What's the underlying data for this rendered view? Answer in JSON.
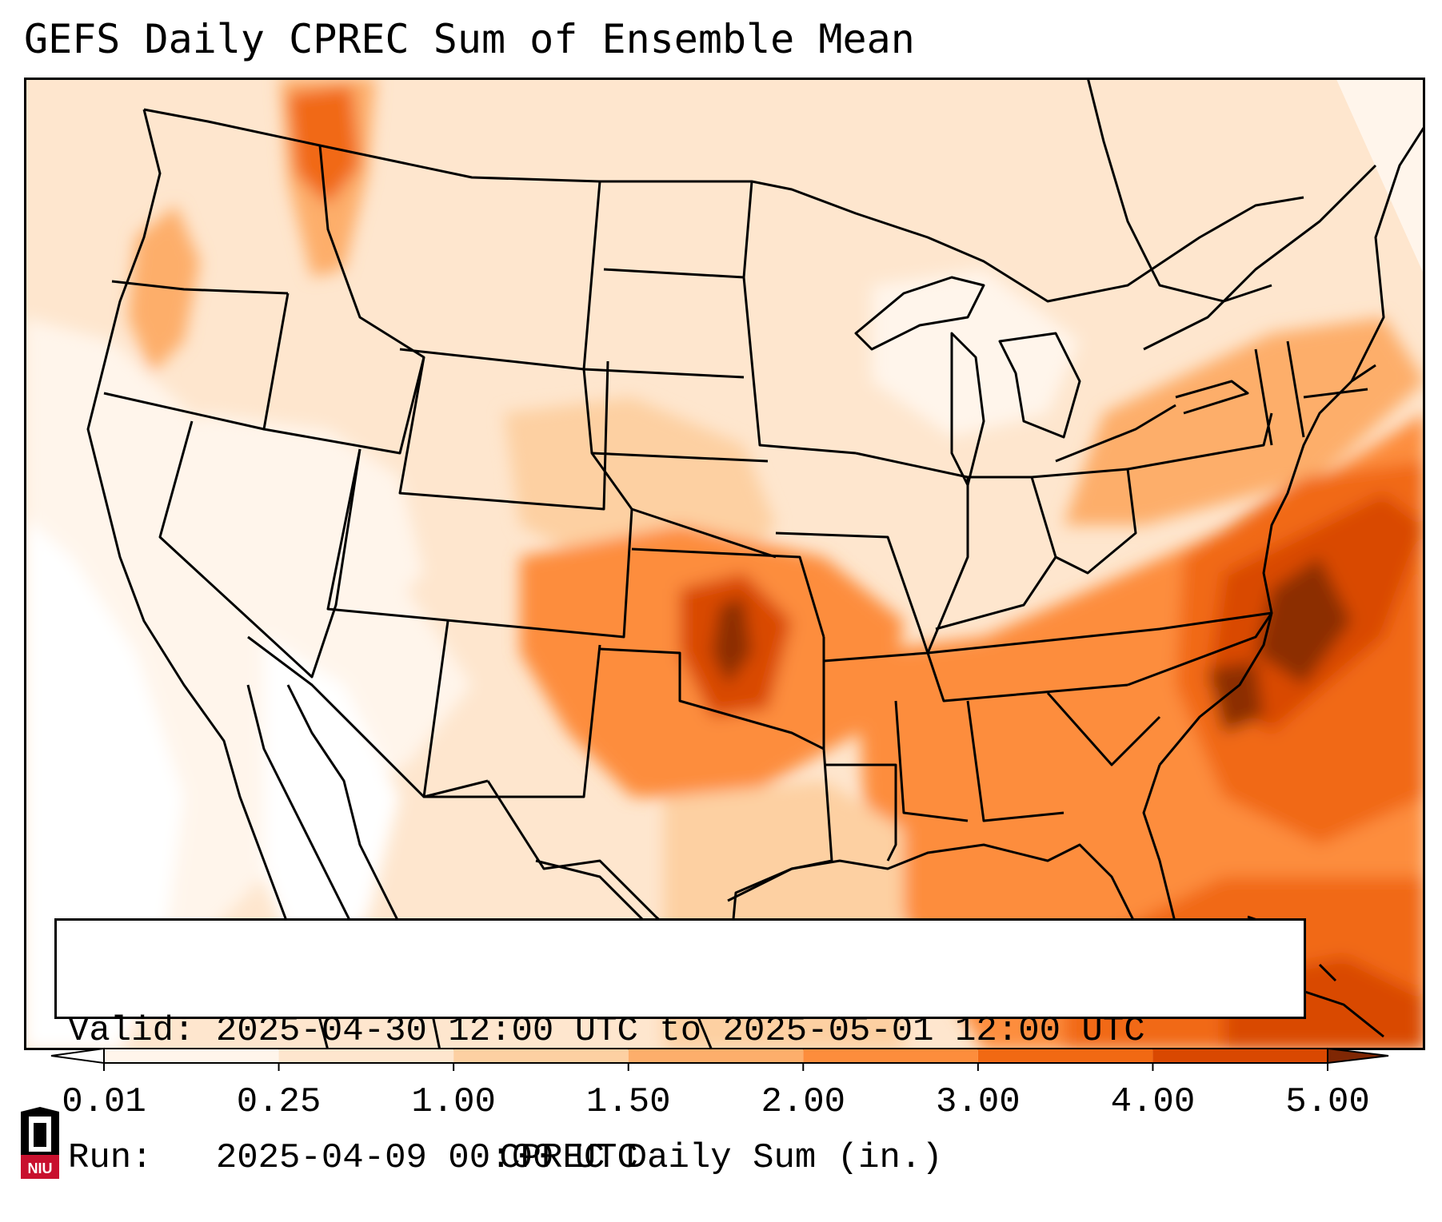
{
  "title": "GEFS Daily CPREC Sum of Ensemble Mean",
  "info": {
    "valid_label": "Valid:",
    "valid_value": "2025-04-30 12:00 UTC to 2025-05-01 12:00 UTC",
    "run_label": "Run:",
    "run_value": "2025-04-09 00:00 UTC"
  },
  "colorbar": {
    "label": "CPREC Daily Sum (in.)",
    "ticks": [
      "0.01",
      "0.25",
      "1.00",
      "1.50",
      "2.00",
      "3.00",
      "4.00",
      "5.00"
    ],
    "colors": [
      "#fff5eb",
      "#fee6ce",
      "#fdd0a2",
      "#fdae6b",
      "#fd8d3c",
      "#f16913",
      "#d94801",
      "#8c2d04"
    ],
    "under_color": "#ffffff",
    "over_color": "#7f2704"
  },
  "logo": {
    "text": "NIU",
    "colors": {
      "red": "#c8102e",
      "black": "#000000"
    }
  },
  "map": {
    "coastline_color": "#000000",
    "border_color": "#000000",
    "frame_color": "#000000"
  }
}
